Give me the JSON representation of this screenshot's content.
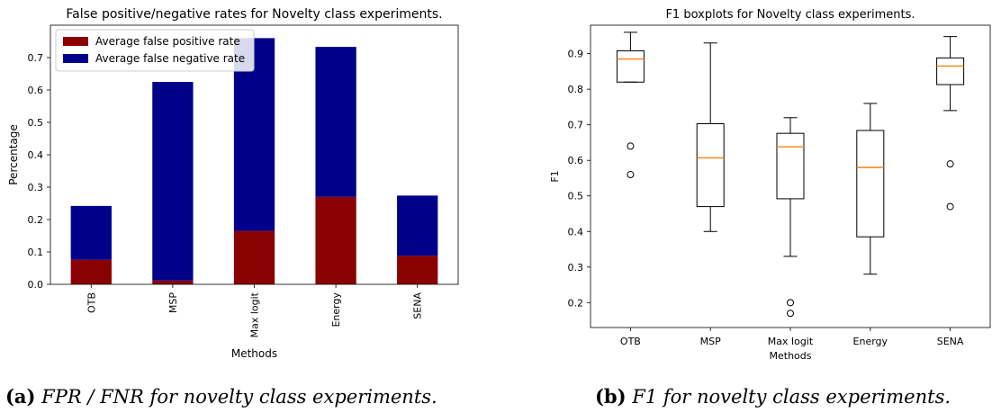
{
  "chart_data": [
    {
      "type": "bar",
      "stacked": true,
      "title": "False positive/negative rates for Novelty class experiments.",
      "xlabel": "Methods",
      "ylabel": "Percentage",
      "categories": [
        "OTB",
        "MSP",
        "Max logit",
        "Energy",
        "SENA"
      ],
      "series": [
        {
          "name": "Average false positive rate",
          "color": "#8b0000",
          "values": [
            0.076,
            0.012,
            0.165,
            0.27,
            0.088
          ]
        },
        {
          "name": "Average false negative rate",
          "color": "#00008b",
          "values": [
            0.166,
            0.613,
            0.595,
            0.463,
            0.186
          ]
        }
      ],
      "ylim": [
        0,
        0.8
      ],
      "yticks": [
        "0.0",
        "0.1",
        "0.2",
        "0.3",
        "0.4",
        "0.5",
        "0.6",
        "0.7"
      ],
      "legend": "top-left",
      "grid": false
    },
    {
      "type": "boxplot",
      "title": "F1 boxplots for Novelty class experiments.",
      "xlabel": "Methods",
      "ylabel": "F1",
      "categories": [
        "OTB",
        "MSP",
        "Max logit",
        "Energy",
        "SENA"
      ],
      "boxes": [
        {
          "whislo": 0.82,
          "q1": 0.82,
          "med": 0.885,
          "q3": 0.908,
          "whishi": 0.96,
          "fliers": [
            0.64,
            0.56
          ]
        },
        {
          "whislo": 0.4,
          "q1": 0.47,
          "med": 0.607,
          "q3": 0.703,
          "whishi": 0.93,
          "fliers": []
        },
        {
          "whislo": 0.33,
          "q1": 0.492,
          "med": 0.638,
          "q3": 0.676,
          "whishi": 0.72,
          "fliers": [
            0.2,
            0.17
          ]
        },
        {
          "whislo": 0.28,
          "q1": 0.385,
          "med": 0.58,
          "q3": 0.684,
          "whishi": 0.76,
          "fliers": []
        },
        {
          "whislo": 0.74,
          "q1": 0.813,
          "med": 0.865,
          "q3": 0.888,
          "whishi": 0.948,
          "fliers": [
            0.59,
            0.47
          ]
        }
      ],
      "ylim": [
        0.13,
        0.98
      ],
      "yticks": [
        "0.2",
        "0.3",
        "0.4",
        "0.5",
        "0.6",
        "0.7",
        "0.8",
        "0.9"
      ],
      "median_color": "#ff7f0e",
      "grid": false
    }
  ],
  "captions": [
    {
      "label": "(a)",
      "text": "FPR / FNR for novelty class experiments."
    },
    {
      "label": "(b)",
      "text": "F1 for novelty class experiments."
    }
  ]
}
